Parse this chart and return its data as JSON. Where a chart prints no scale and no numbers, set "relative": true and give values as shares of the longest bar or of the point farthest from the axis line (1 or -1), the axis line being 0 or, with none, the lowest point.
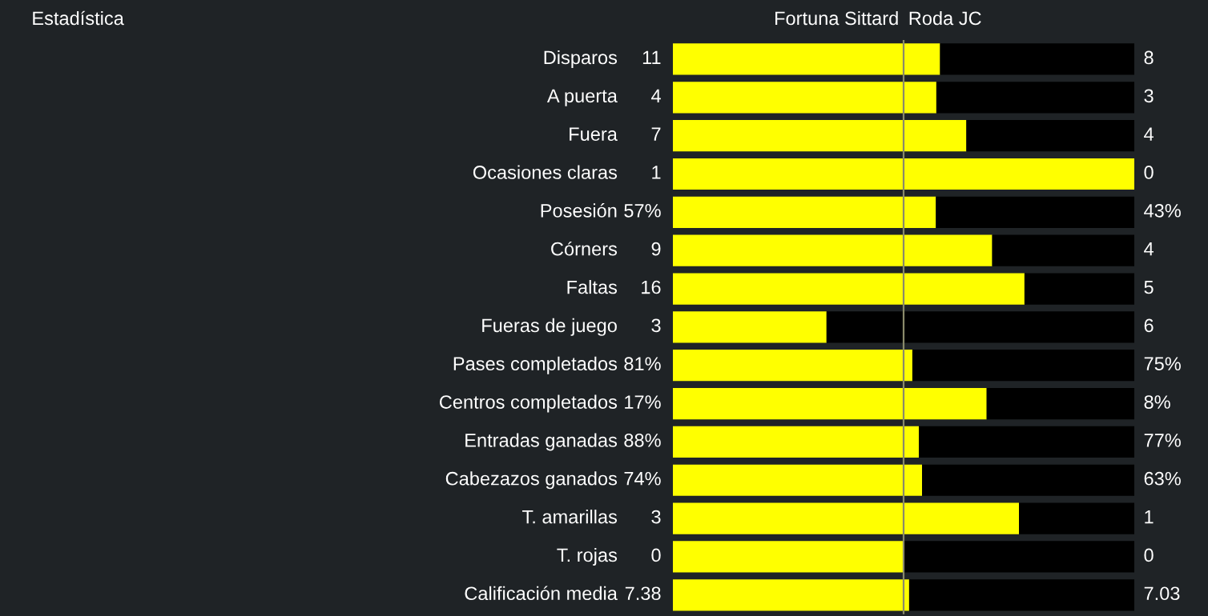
{
  "chart_data": {
    "type": "bar",
    "orientation": "horizontal",
    "stacked": true,
    "relative": true,
    "categories": [
      "Disparos",
      "A puerta",
      "Fuera",
      "Ocasiones claras",
      "Posesión",
      "Córners",
      "Faltas",
      "Fueras de juego",
      "Pases completados",
      "Centros completados",
      "Entradas ganadas",
      "Cabezazos ganados",
      "T. amarillas",
      "T. rojas",
      "Calificación media"
    ],
    "series": [
      {
        "name": "Fortuna Sittard",
        "color": "#ffff00",
        "values": [
          0.579,
          0.571,
          0.636,
          1,
          0.57,
          0.692,
          0.762,
          0.333,
          0.519,
          0.68,
          0.533,
          0.54,
          0.75,
          0.5,
          0.512
        ]
      },
      {
        "name": "Roda JC",
        "color": "#000000",
        "values": [
          0.421,
          0.429,
          0.364,
          0,
          0.43,
          0.308,
          0.238,
          0.667,
          0.481,
          0.32,
          0.467,
          0.46,
          0.25,
          0.5,
          0.488
        ]
      }
    ],
    "annotations": [
      "Estadística",
      "11",
      "8",
      "4",
      "3",
      "7",
      "4",
      "1",
      "0",
      "57%",
      "43%",
      "9",
      "4",
      "16",
      "5",
      "3",
      "6",
      "81%",
      "75%",
      "17%",
      "8%",
      "88%",
      "77%",
      "74%",
      "63%",
      "3",
      "1",
      "0",
      "0",
      "7.38",
      "7.03"
    ],
    "ref_lines": [
      {
        "axis": "x",
        "value": 0.5,
        "color": "#8a8a6a"
      }
    ],
    "legend": false
  }
}
